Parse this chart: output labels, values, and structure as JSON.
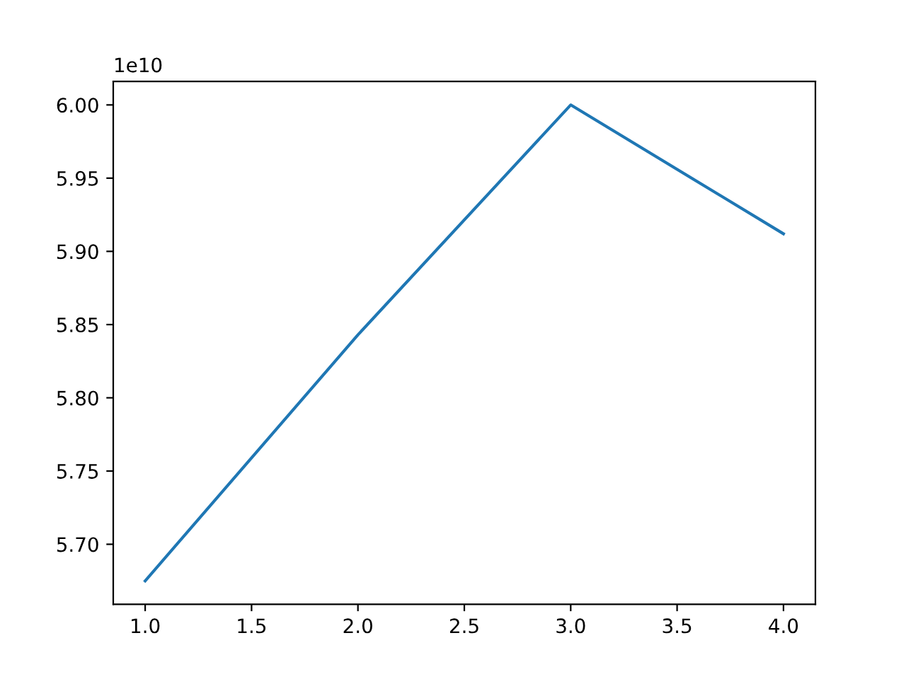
{
  "chart_data": {
    "type": "line",
    "x": [
      1,
      2,
      3,
      4
    ],
    "series": [
      {
        "color": "#1f77b4",
        "values": [
          5.675,
          5.843,
          6.0,
          5.912
        ]
      }
    ],
    "xlim": [
      0.85,
      4.15
    ],
    "xticks": [
      {
        "value": 1.0,
        "label": "1.0"
      },
      {
        "value": 1.5,
        "label": "1.5"
      },
      {
        "value": 2.0,
        "label": "2.0"
      },
      {
        "value": 2.5,
        "label": "2.5"
      },
      {
        "value": 3.0,
        "label": "3.0"
      },
      {
        "value": 3.5,
        "label": "3.5"
      },
      {
        "value": 4.0,
        "label": "4.0"
      }
    ],
    "ylim": [
      5.659,
      6.016
    ],
    "yticks": [
      {
        "value": 5.7,
        "label": "5.70"
      },
      {
        "value": 5.75,
        "label": "5.75"
      },
      {
        "value": 5.8,
        "label": "5.80"
      },
      {
        "value": 5.85,
        "label": "5.85"
      },
      {
        "value": 5.9,
        "label": "5.90"
      },
      {
        "value": 5.95,
        "label": "5.95"
      },
      {
        "value": 6.0,
        "label": "6.00"
      }
    ],
    "annotations": [
      "1e10"
    ],
    "grid": false,
    "legend": false,
    "marker": "none",
    "line_style": "solid"
  }
}
